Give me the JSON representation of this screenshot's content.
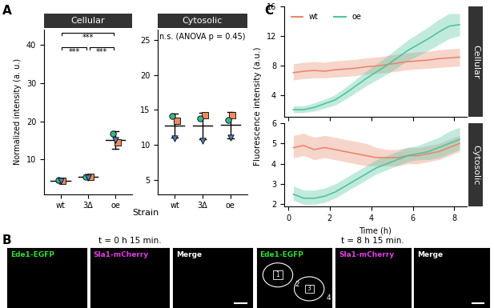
{
  "panel_labels": [
    "A",
    "B",
    "C"
  ],
  "chart_data": [
    {
      "type": "dot",
      "title": "Cellular",
      "x_label": "Strain",
      "y_label": "Normalized intensity (a. u.)",
      "categories": [
        "wt",
        "3Δ",
        "oe"
      ],
      "ylim": [
        1,
        44
      ],
      "yticks": [
        10,
        20,
        30,
        40
      ],
      "mean": [
        4.5,
        5.5,
        15.0
      ],
      "error_bars": [
        [
          4.1,
          4.9
        ],
        [
          5.1,
          6.0
        ],
        [
          12.8,
          17.3
        ]
      ],
      "series": [
        {
          "color": "#f08a5d",
          "marker": "square",
          "values": [
            4.5,
            5.6,
            14.5
          ]
        },
        {
          "color": "#3bb58e",
          "marker": "circle",
          "values": [
            4.6,
            5.6,
            16.8
          ]
        },
        {
          "color": "#4a7fc1",
          "marker": "triangle_down",
          "values": [
            4.4,
            5.3,
            15.2
          ]
        }
      ],
      "comparisons": [
        {
          "pair": [
            "wt",
            "oe"
          ],
          "label": "***"
        },
        {
          "pair": [
            "wt",
            "3Δ"
          ],
          "label": "***"
        },
        {
          "pair": [
            "3Δ",
            "oe"
          ],
          "label": "***"
        }
      ]
    },
    {
      "type": "dot",
      "title": "Cytosolic",
      "annotation": "n.s. (ANOVA p = 0.45)",
      "categories": [
        "wt",
        "3Δ",
        "oe"
      ],
      "ylim": [
        3,
        26.5
      ],
      "yticks": [
        5,
        10,
        15,
        20,
        25
      ],
      "mean": [
        12.8,
        12.8,
        12.9
      ],
      "error_bars": [
        [
          11.0,
          14.5
        ],
        [
          10.8,
          14.6
        ],
        [
          10.9,
          14.7
        ]
      ],
      "series": [
        {
          "color": "#f08a5d",
          "marker": "square",
          "values": [
            13.5,
            14.3,
            14.3
          ]
        },
        {
          "color": "#3bb58e",
          "marker": "circle",
          "values": [
            14.1,
            13.8,
            13.6
          ]
        },
        {
          "color": "#4a7fc1",
          "marker": "triangle_down",
          "values": [
            10.9,
            10.6,
            11.0
          ]
        }
      ]
    },
    {
      "type": "line",
      "title": "Cellular",
      "y_label": "Fluorescence intensity (a.u.)",
      "legend": "upper left",
      "tick_labels": "y",
      "xlim": [
        -0.2,
        8.6
      ],
      "xticks": [
        0,
        2,
        4,
        6,
        8
      ],
      "ylim": [
        1,
        16
      ],
      "yticks": [
        4,
        8,
        12,
        16
      ],
      "x": [
        0.25,
        0.75,
        1.25,
        1.75,
        2.25,
        2.75,
        3.25,
        3.75,
        4.25,
        4.75,
        5.25,
        5.75,
        6.25,
        6.75,
        7.25,
        7.75,
        8.25
      ],
      "series": [
        {
          "name": "wt",
          "color": "#e8896a",
          "values": [
            7.0,
            7.2,
            7.3,
            7.2,
            7.4,
            7.5,
            7.6,
            7.8,
            7.9,
            8.1,
            8.3,
            8.5,
            8.6,
            8.7,
            8.9,
            9.0,
            9.1
          ],
          "lower": [
            6.0,
            6.2,
            6.3,
            6.3,
            6.4,
            6.5,
            6.6,
            6.8,
            6.9,
            7.0,
            7.2,
            7.4,
            7.5,
            7.6,
            7.7,
            7.8,
            7.9
          ],
          "upper": [
            8.2,
            8.4,
            8.5,
            8.4,
            8.6,
            8.7,
            8.8,
            9.0,
            9.1,
            9.3,
            9.5,
            9.7,
            9.8,
            9.9,
            10.1,
            10.2,
            10.3
          ]
        },
        {
          "name": "oe",
          "color": "#4fc4a0",
          "values": [
            2.0,
            2.0,
            2.3,
            2.8,
            3.3,
            4.2,
            5.2,
            6.2,
            7.1,
            8.0,
            9.0,
            10.0,
            10.8,
            11.6,
            12.5,
            13.3,
            13.5
          ],
          "lower": [
            1.6,
            1.6,
            1.8,
            2.2,
            2.6,
            3.4,
            4.3,
            5.2,
            6.0,
            6.8,
            7.7,
            8.6,
            9.3,
            10.0,
            10.8,
            11.6,
            12.0
          ],
          "upper": [
            2.5,
            2.5,
            2.9,
            3.4,
            4.0,
            5.0,
            6.1,
            7.2,
            8.2,
            9.2,
            10.3,
            11.4,
            12.3,
            13.2,
            14.2,
            15.0,
            15.0
          ]
        }
      ]
    },
    {
      "type": "line",
      "title": "Cytosolic",
      "x_label": "Time (h)",
      "xlim": [
        -0.2,
        8.6
      ],
      "xticks": [
        0,
        2,
        4,
        6,
        8
      ],
      "ylim": [
        1.9,
        6
      ],
      "yticks": [
        2,
        3,
        4,
        5,
        6
      ],
      "x": [
        0.25,
        0.75,
        1.25,
        1.75,
        2.25,
        2.75,
        3.25,
        3.75,
        4.25,
        4.75,
        5.25,
        5.75,
        6.25,
        6.75,
        7.25,
        7.75,
        8.25
      ],
      "series": [
        {
          "name": "wt",
          "color": "#e8896a",
          "values": [
            4.8,
            4.9,
            4.7,
            4.8,
            4.7,
            4.6,
            4.5,
            4.4,
            4.3,
            4.3,
            4.3,
            4.4,
            4.4,
            4.5,
            4.6,
            4.8,
            5.0
          ],
          "lower": [
            4.3,
            4.4,
            4.2,
            4.3,
            4.2,
            4.1,
            4.0,
            3.9,
            3.9,
            3.9,
            3.9,
            4.0,
            4.0,
            4.1,
            4.2,
            4.4,
            4.6
          ],
          "upper": [
            5.4,
            5.5,
            5.3,
            5.4,
            5.3,
            5.2,
            5.1,
            5.0,
            4.8,
            4.7,
            4.7,
            4.8,
            4.8,
            4.9,
            5.0,
            5.2,
            5.4
          ]
        },
        {
          "name": "oe",
          "color": "#4fc4a0",
          "values": [
            2.5,
            2.3,
            2.3,
            2.4,
            2.6,
            2.9,
            3.2,
            3.5,
            3.8,
            4.0,
            4.2,
            4.4,
            4.5,
            4.6,
            4.8,
            5.0,
            5.2
          ],
          "lower": [
            2.2,
            2.0,
            2.0,
            2.1,
            2.3,
            2.6,
            2.9,
            3.2,
            3.5,
            3.7,
            3.9,
            4.1,
            4.2,
            4.2,
            4.3,
            4.5,
            4.7
          ],
          "upper": [
            2.9,
            2.7,
            2.7,
            2.8,
            3.0,
            3.3,
            3.6,
            3.9,
            4.2,
            4.4,
            4.6,
            4.8,
            4.9,
            5.1,
            5.3,
            5.6,
            5.8
          ]
        }
      ]
    }
  ],
  "images": {
    "panels": [
      {
        "title": "t = 0 h 15 min.",
        "channels": [
          "Ede1-EGFP",
          "Sla1-mCherry",
          "Merge"
        ],
        "channel_colors": [
          "#33dd33",
          "#e040e0",
          "#ffffff"
        ],
        "regions": []
      },
      {
        "title": "t = 8 h 15 min.",
        "channels": [
          "Ede1-EGFP",
          "Sla1-mCherry",
          "Merge"
        ],
        "channel_colors": [
          "#33dd33",
          "#e040e0",
          "#ffffff"
        ],
        "regions": [
          "1",
          "2",
          "3",
          "4"
        ]
      }
    ]
  }
}
